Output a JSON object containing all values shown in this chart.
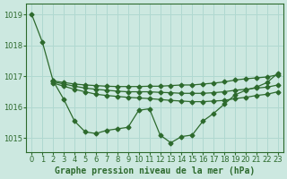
{
  "background_color": "#cce8e0",
  "plot_bg_color": "#cce8e0",
  "grid_color": "#b0d8d0",
  "line_color": "#2d6a2d",
  "xlabel_text": "Graphe pression niveau de la mer (hPa)",
  "xlim": [
    -0.5,
    23.5
  ],
  "ylim": [
    1014.55,
    1019.35
  ],
  "yticks": [
    1015,
    1016,
    1017,
    1018,
    1019
  ],
  "xticks": [
    0,
    1,
    2,
    3,
    4,
    5,
    6,
    7,
    8,
    9,
    10,
    11,
    12,
    13,
    14,
    15,
    16,
    17,
    18,
    19,
    20,
    21,
    22,
    23
  ],
  "series": [
    {
      "x": [
        0,
        1,
        2,
        3,
        4,
        5,
        6,
        7,
        8,
        9,
        10,
        11,
        12,
        13,
        14,
        15,
        16,
        17,
        18,
        19,
        20,
        21,
        22,
        23
      ],
      "y": [
        1019.0,
        1018.1,
        1016.85,
        1016.25,
        1015.55,
        1015.2,
        1015.15,
        1015.25,
        1015.3,
        1015.35,
        1015.9,
        1015.95,
        1015.1,
        1014.85,
        1015.05,
        1015.1,
        1015.55,
        1015.8,
        1016.1,
        1016.4,
        1016.55,
        1016.65,
        1016.8,
        1017.1
      ]
    },
    {
      "x": [
        2,
        3,
        4,
        5,
        6,
        7,
        8,
        9,
        10,
        11,
        12,
        13,
        14,
        15,
        16,
        17,
        18,
        19,
        20,
        21,
        22,
        23
      ],
      "y": [
        1016.85,
        1016.8,
        1016.75,
        1016.72,
        1016.7,
        1016.68,
        1016.67,
        1016.67,
        1016.67,
        1016.68,
        1016.68,
        1016.7,
        1016.72,
        1016.72,
        1016.75,
        1016.78,
        1016.82,
        1016.88,
        1016.92,
        1016.95,
        1016.98,
        1017.05
      ]
    },
    {
      "x": [
        2,
        3,
        4,
        5,
        6,
        7,
        8,
        9,
        10,
        11,
        12,
        13,
        14,
        15,
        16,
        17,
        18,
        19,
        20,
        21,
        22,
        23
      ],
      "y": [
        1016.82,
        1016.75,
        1016.68,
        1016.62,
        1016.58,
        1016.55,
        1016.52,
        1016.5,
        1016.5,
        1016.5,
        1016.48,
        1016.47,
        1016.45,
        1016.45,
        1016.45,
        1016.47,
        1016.5,
        1016.55,
        1016.58,
        1016.62,
        1016.65,
        1016.72
      ]
    },
    {
      "x": [
        2,
        3,
        4,
        5,
        6,
        7,
        8,
        9,
        10,
        11,
        12,
        13,
        14,
        15,
        16,
        17,
        18,
        19,
        20,
        21,
        22,
        23
      ],
      "y": [
        1016.78,
        1016.68,
        1016.58,
        1016.5,
        1016.42,
        1016.38,
        1016.35,
        1016.32,
        1016.3,
        1016.28,
        1016.25,
        1016.22,
        1016.2,
        1016.18,
        1016.18,
        1016.2,
        1016.22,
        1016.28,
        1016.32,
        1016.38,
        1016.42,
        1016.5
      ]
    }
  ],
  "marker": "D",
  "markersize": 2.5,
  "linewidth": 0.9,
  "tick_fontsize": 6,
  "xlabel_fontsize": 7
}
